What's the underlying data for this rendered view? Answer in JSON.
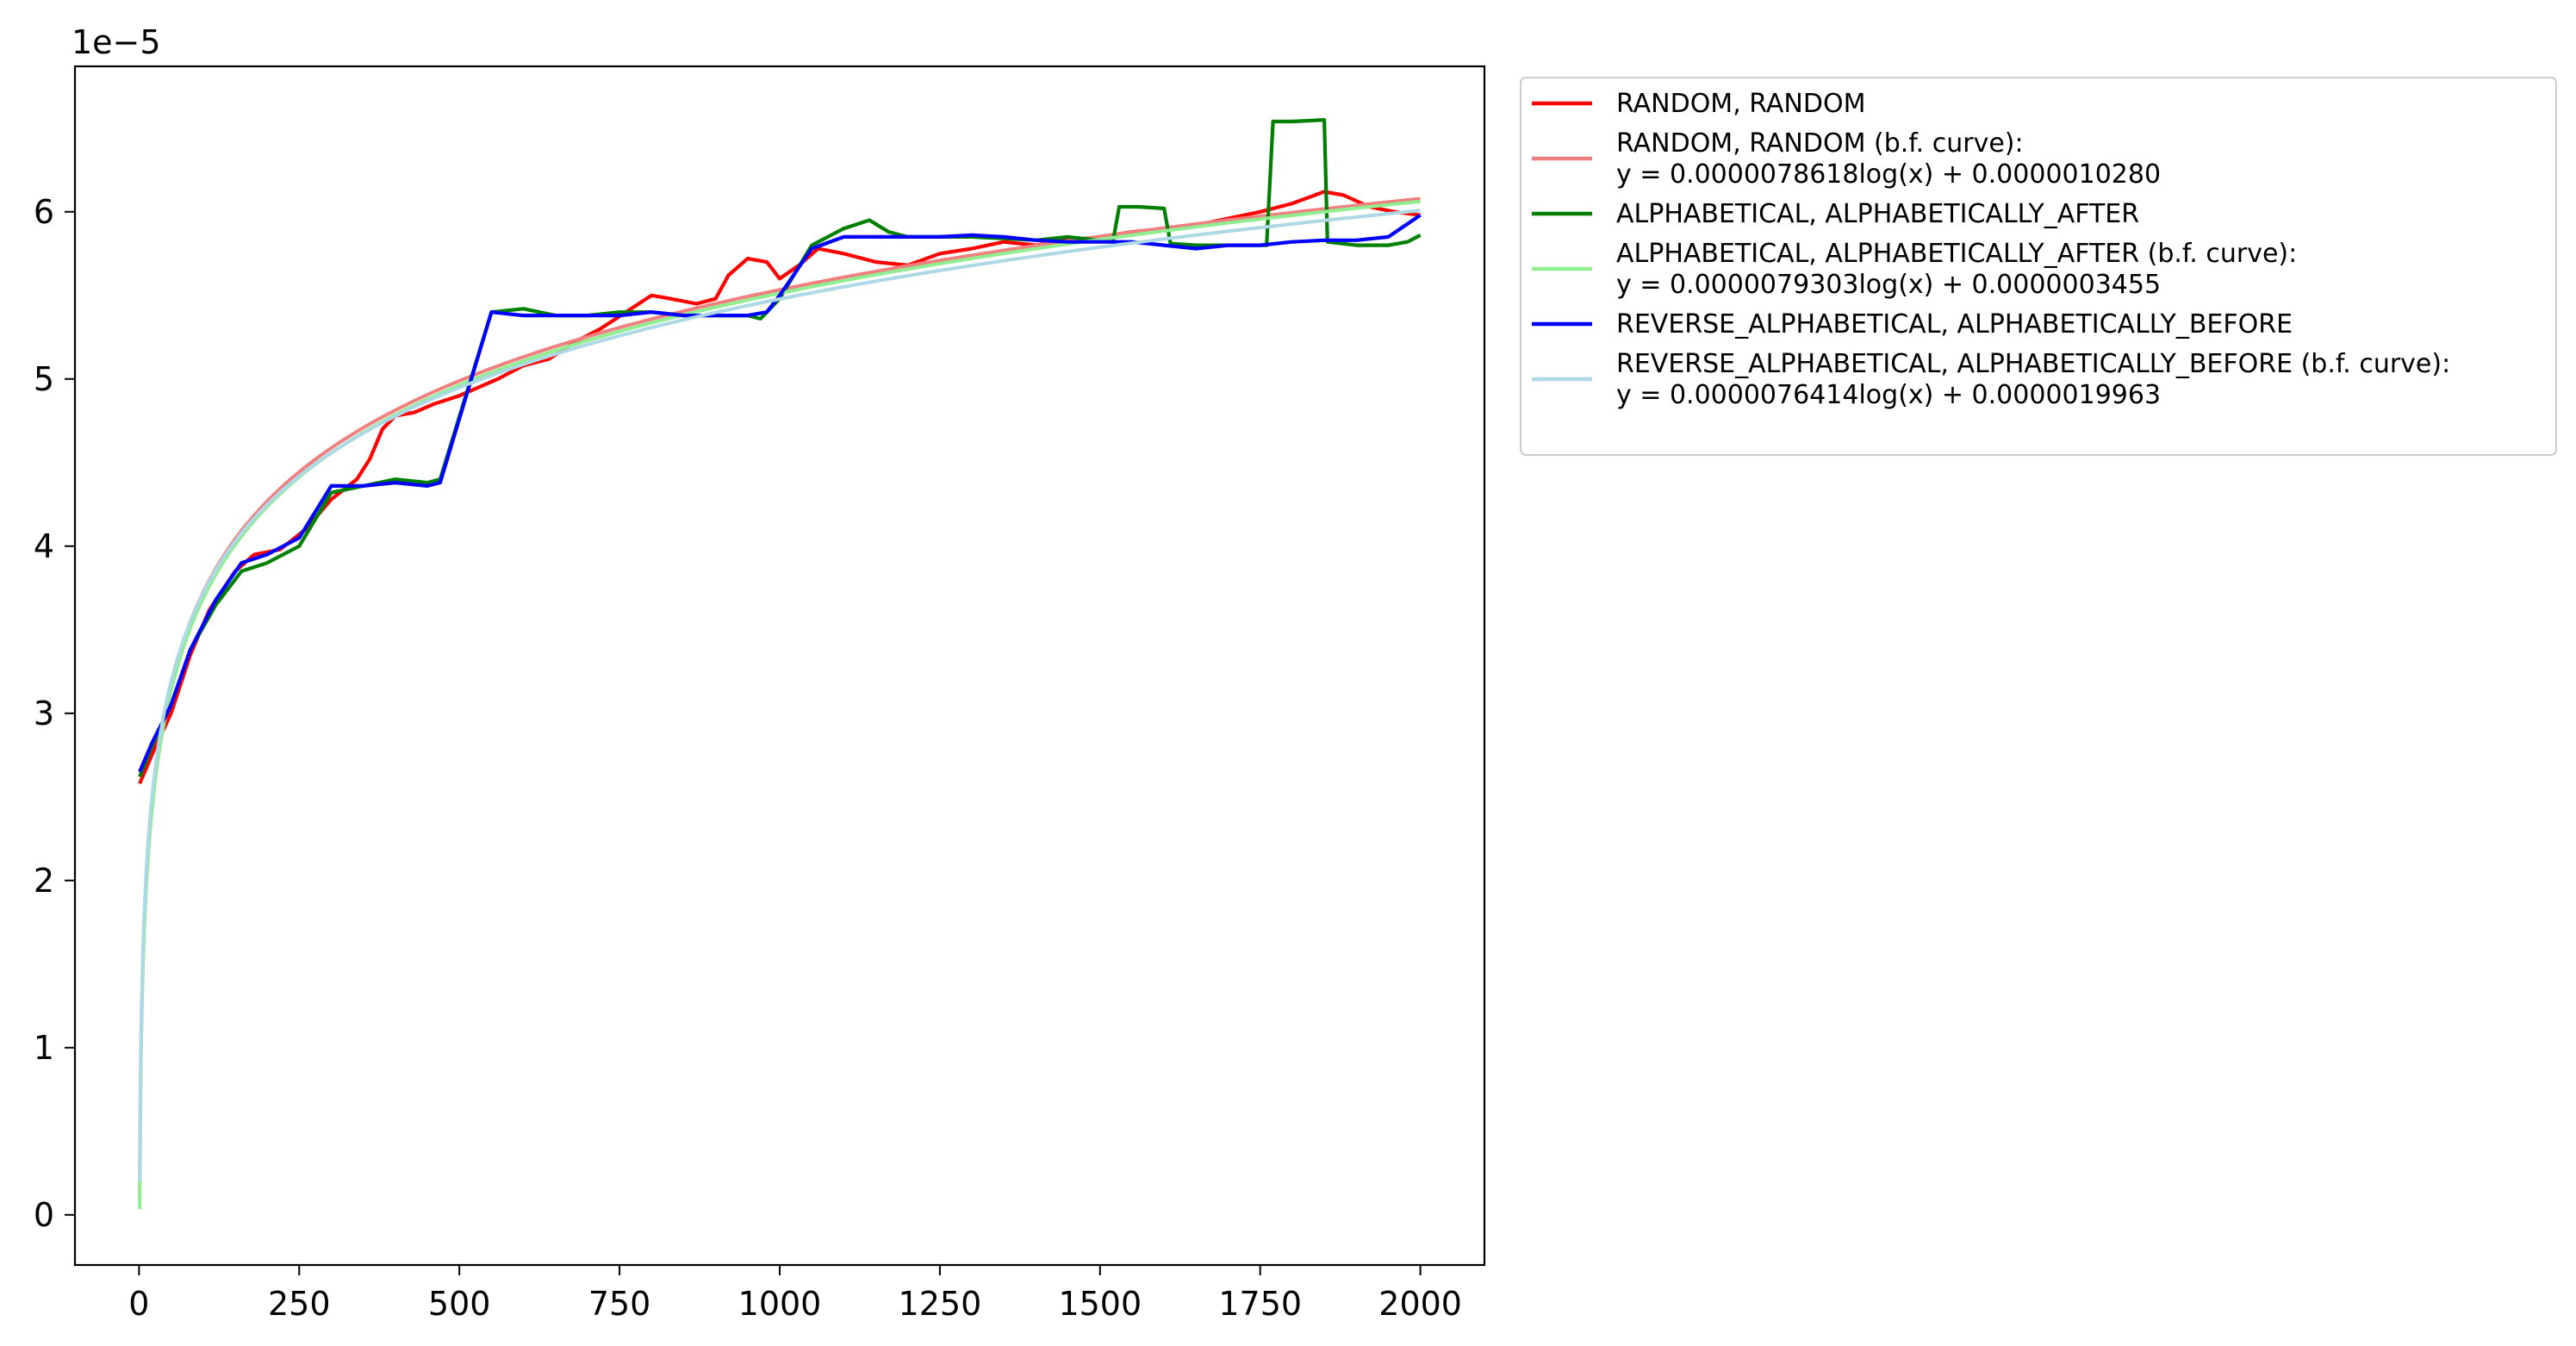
{
  "chart_data": {
    "type": "line",
    "title": "",
    "xlabel": "",
    "ylabel": "",
    "y_offset_label": "1e−5",
    "xlim": [
      -100,
      2100
    ],
    "ylim": [
      -3e-06,
      6.87e-05
    ],
    "x_ticks": [
      0,
      250,
      500,
      750,
      1000,
      1250,
      1500,
      1750,
      2000
    ],
    "x_tick_labels": [
      "0",
      "250",
      "500",
      "750",
      "1000",
      "1250",
      "1500",
      "1750",
      "2000"
    ],
    "y_ticks": [
      0,
      1e-05,
      2e-05,
      3e-05,
      4e-05,
      5e-05,
      6e-05
    ],
    "y_tick_labels": [
      "0",
      "1",
      "2",
      "3",
      "4",
      "5",
      "6"
    ],
    "grid": false,
    "legend_position": "outside-right-top",
    "series": [
      {
        "name": "RANDOM, RANDOM",
        "color": "#ff0000",
        "points": [
          [
            1,
            2.58e-05
          ],
          [
            20,
            2.75e-05
          ],
          [
            50,
            3e-05
          ],
          [
            80,
            3.35e-05
          ],
          [
            110,
            3.62e-05
          ],
          [
            150,
            3.85e-05
          ],
          [
            180,
            3.95e-05
          ],
          [
            220,
            3.98e-05
          ],
          [
            260,
            4.1e-05
          ],
          [
            300,
            4.28e-05
          ],
          [
            340,
            4.4e-05
          ],
          [
            360,
            4.52e-05
          ],
          [
            380,
            4.7e-05
          ],
          [
            400,
            4.78e-05
          ],
          [
            430,
            4.8e-05
          ],
          [
            460,
            4.85e-05
          ],
          [
            500,
            4.9e-05
          ],
          [
            530,
            4.95e-05
          ],
          [
            560,
            5e-05
          ],
          [
            600,
            5.08e-05
          ],
          [
            640,
            5.12e-05
          ],
          [
            680,
            5.22e-05
          ],
          [
            720,
            5.3e-05
          ],
          [
            760,
            5.4e-05
          ],
          [
            800,
            5.5e-05
          ],
          [
            830,
            5.48e-05
          ],
          [
            870,
            5.45e-05
          ],
          [
            900,
            5.48e-05
          ],
          [
            920,
            5.62e-05
          ],
          [
            950,
            5.72e-05
          ],
          [
            980,
            5.7e-05
          ],
          [
            1000,
            5.6e-05
          ],
          [
            1030,
            5.68e-05
          ],
          [
            1060,
            5.78e-05
          ],
          [
            1100,
            5.75e-05
          ],
          [
            1150,
            5.7e-05
          ],
          [
            1200,
            5.68e-05
          ],
          [
            1250,
            5.75e-05
          ],
          [
            1300,
            5.78e-05
          ],
          [
            1350,
            5.82e-05
          ],
          [
            1400,
            5.8e-05
          ],
          [
            1450,
            5.83e-05
          ],
          [
            1500,
            5.85e-05
          ],
          [
            1550,
            5.88e-05
          ],
          [
            1600,
            5.9e-05
          ],
          [
            1650,
            5.92e-05
          ],
          [
            1700,
            5.96e-05
          ],
          [
            1750,
            6e-05
          ],
          [
            1800,
            6.05e-05
          ],
          [
            1850,
            6.12e-05
          ],
          [
            1880,
            6.1e-05
          ],
          [
            1920,
            6.03e-05
          ],
          [
            1960,
            6e-05
          ],
          [
            2000,
            5.98e-05
          ]
        ]
      },
      {
        "name": "RANDOM, RANDOM (b.f. curve):",
        "equation": "y = 0.0000078618log(x) + 0.0000010280",
        "color": "#f08080",
        "fit": {
          "a": 7.8618e-06,
          "b": 1.028e-06
        }
      },
      {
        "name": "ALPHABETICAL, ALPHABETICALLY_AFTER",
        "color": "#008000",
        "points": [
          [
            1,
            2.62e-05
          ],
          [
            20,
            2.8e-05
          ],
          [
            50,
            3.05e-05
          ],
          [
            80,
            3.38e-05
          ],
          [
            120,
            3.65e-05
          ],
          [
            160,
            3.85e-05
          ],
          [
            200,
            3.9e-05
          ],
          [
            250,
            4e-05
          ],
          [
            300,
            4.32e-05
          ],
          [
            350,
            4.36e-05
          ],
          [
            400,
            4.4e-05
          ],
          [
            450,
            4.38e-05
          ],
          [
            470,
            4.4e-05
          ],
          [
            550,
            5.4e-05
          ],
          [
            600,
            5.42e-05
          ],
          [
            650,
            5.38e-05
          ],
          [
            700,
            5.38e-05
          ],
          [
            750,
            5.4e-05
          ],
          [
            800,
            5.4e-05
          ],
          [
            850,
            5.38e-05
          ],
          [
            900,
            5.38e-05
          ],
          [
            950,
            5.38e-05
          ],
          [
            970,
            5.36e-05
          ],
          [
            1000,
            5.48e-05
          ],
          [
            1050,
            5.8e-05
          ],
          [
            1100,
            5.9e-05
          ],
          [
            1140,
            5.95e-05
          ],
          [
            1170,
            5.88e-05
          ],
          [
            1200,
            5.85e-05
          ],
          [
            1250,
            5.85e-05
          ],
          [
            1300,
            5.85e-05
          ],
          [
            1350,
            5.84e-05
          ],
          [
            1400,
            5.83e-05
          ],
          [
            1450,
            5.85e-05
          ],
          [
            1520,
            5.82e-05
          ],
          [
            1530,
            6.03e-05
          ],
          [
            1560,
            6.03e-05
          ],
          [
            1600,
            6.02e-05
          ],
          [
            1610,
            5.81e-05
          ],
          [
            1650,
            5.8e-05
          ],
          [
            1700,
            5.8e-05
          ],
          [
            1760,
            5.8e-05
          ],
          [
            1770,
            6.54e-05
          ],
          [
            1800,
            6.54e-05
          ],
          [
            1850,
            6.55e-05
          ],
          [
            1855,
            5.82e-05
          ],
          [
            1900,
            5.8e-05
          ],
          [
            1950,
            5.8e-05
          ],
          [
            1980,
            5.82e-05
          ],
          [
            2000,
            5.86e-05
          ]
        ]
      },
      {
        "name": "ALPHABETICAL, ALPHABETICALLY_AFTER (b.f. curve):",
        "equation": "y = 0.0000079303log(x) + 0.0000003455",
        "color": "#90ee90",
        "fit": {
          "a": 7.9303e-06,
          "b": 3.455e-07
        }
      },
      {
        "name": "REVERSE_ALPHABETICAL, ALPHABETICALLY_BEFORE",
        "color": "#0000ff",
        "points": [
          [
            1,
            2.65e-05
          ],
          [
            20,
            2.82e-05
          ],
          [
            50,
            3.05e-05
          ],
          [
            80,
            3.38e-05
          ],
          [
            120,
            3.68e-05
          ],
          [
            160,
            3.9e-05
          ],
          [
            200,
            3.95e-05
          ],
          [
            250,
            4.05e-05
          ],
          [
            300,
            4.36e-05
          ],
          [
            350,
            4.36e-05
          ],
          [
            400,
            4.38e-05
          ],
          [
            450,
            4.36e-05
          ],
          [
            470,
            4.38e-05
          ],
          [
            550,
            5.4e-05
          ],
          [
            600,
            5.38e-05
          ],
          [
            650,
            5.38e-05
          ],
          [
            700,
            5.38e-05
          ],
          [
            750,
            5.38e-05
          ],
          [
            800,
            5.4e-05
          ],
          [
            850,
            5.38e-05
          ],
          [
            900,
            5.38e-05
          ],
          [
            950,
            5.38e-05
          ],
          [
            980,
            5.4e-05
          ],
          [
            1000,
            5.5e-05
          ],
          [
            1050,
            5.78e-05
          ],
          [
            1100,
            5.85e-05
          ],
          [
            1150,
            5.85e-05
          ],
          [
            1200,
            5.85e-05
          ],
          [
            1250,
            5.85e-05
          ],
          [
            1300,
            5.86e-05
          ],
          [
            1350,
            5.85e-05
          ],
          [
            1400,
            5.83e-05
          ],
          [
            1450,
            5.82e-05
          ],
          [
            1500,
            5.82e-05
          ],
          [
            1550,
            5.82e-05
          ],
          [
            1600,
            5.8e-05
          ],
          [
            1650,
            5.78e-05
          ],
          [
            1700,
            5.8e-05
          ],
          [
            1750,
            5.8e-05
          ],
          [
            1800,
            5.82e-05
          ],
          [
            1850,
            5.83e-05
          ],
          [
            1900,
            5.83e-05
          ],
          [
            1950,
            5.85e-05
          ],
          [
            2000,
            5.98e-05
          ]
        ]
      },
      {
        "name": "REVERSE_ALPHABETICAL, ALPHABETICALLY_BEFORE (b.f. curve):",
        "equation": "y = 0.0000076414log(x) + 0.0000019963",
        "color": "#add8e6",
        "fit": {
          "a": 7.6414e-06,
          "b": 1.9963e-06
        }
      }
    ]
  }
}
